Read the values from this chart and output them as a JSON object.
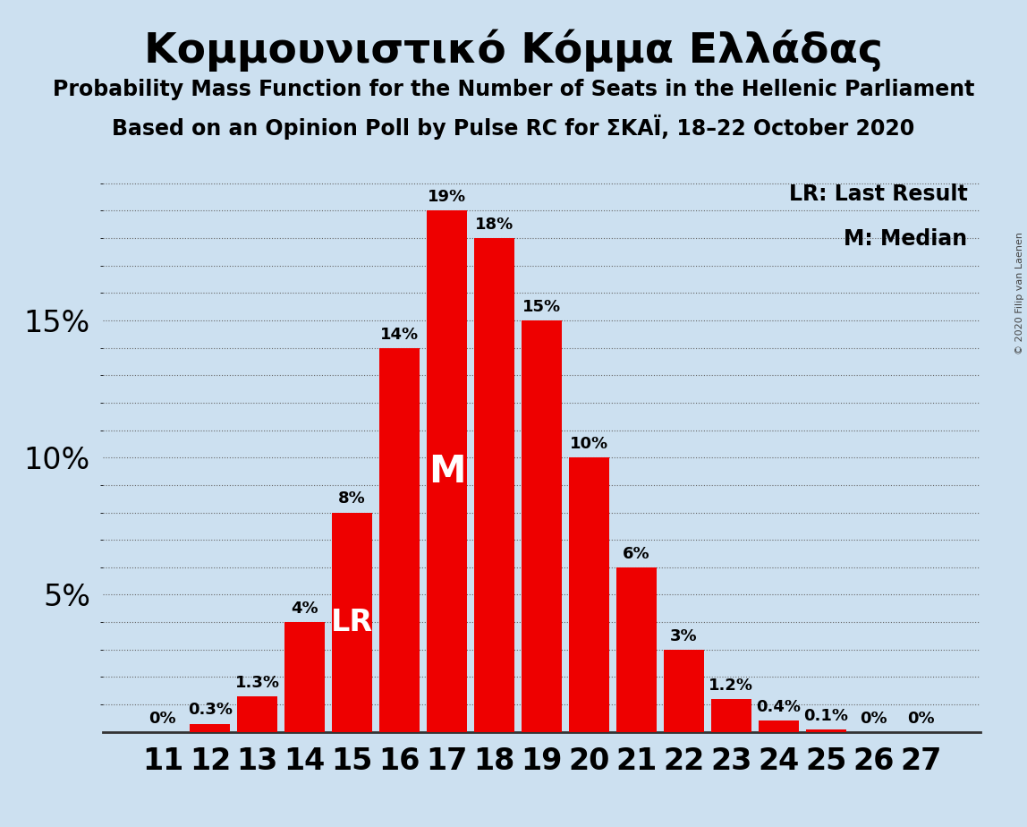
{
  "title": "Κομμουνιστικό Κόμμα Ελλάδας",
  "subtitle1": "Probability Mass Function for the Number of Seats in the Hellenic Parliament",
  "subtitle2": "Based on an Opinion Poll by Pulse RC for ΣΚΑΪ, 18–22 October 2020",
  "copyright": "© 2020 Filip van Laenen",
  "categories": [
    11,
    12,
    13,
    14,
    15,
    16,
    17,
    18,
    19,
    20,
    21,
    22,
    23,
    24,
    25,
    26,
    27
  ],
  "values": [
    0,
    0.3,
    1.3,
    4,
    8,
    14,
    19,
    18,
    15,
    10,
    6,
    3,
    1.2,
    0.4,
    0.1,
    0,
    0
  ],
  "bar_color": "#ee0000",
  "background_color": "#cce0f0",
  "text_color": "#000000",
  "lr_bar": 15,
  "median_bar": 17,
  "lr_label": "LR",
  "median_label": "M",
  "legend_lr": "LR: Last Result",
  "legend_m": "M: Median",
  "ylabel_ticks": [
    5,
    10,
    15
  ],
  "ylim": [
    0,
    20.5
  ],
  "bar_labels": [
    "0%",
    "0.3%",
    "1.3%",
    "4%",
    "8%",
    "14%",
    "19%",
    "18%",
    "15%",
    "10%",
    "6%",
    "3%",
    "1.2%",
    "0.4%",
    "0.1%",
    "0%",
    "0%"
  ],
  "title_fontsize": 34,
  "subtitle_fontsize": 17,
  "tick_label_fontsize": 24,
  "bar_label_fontsize": 13,
  "legend_fontsize": 17,
  "lr_fontsize": 24,
  "m_fontsize": 30,
  "copyright_fontsize": 8
}
